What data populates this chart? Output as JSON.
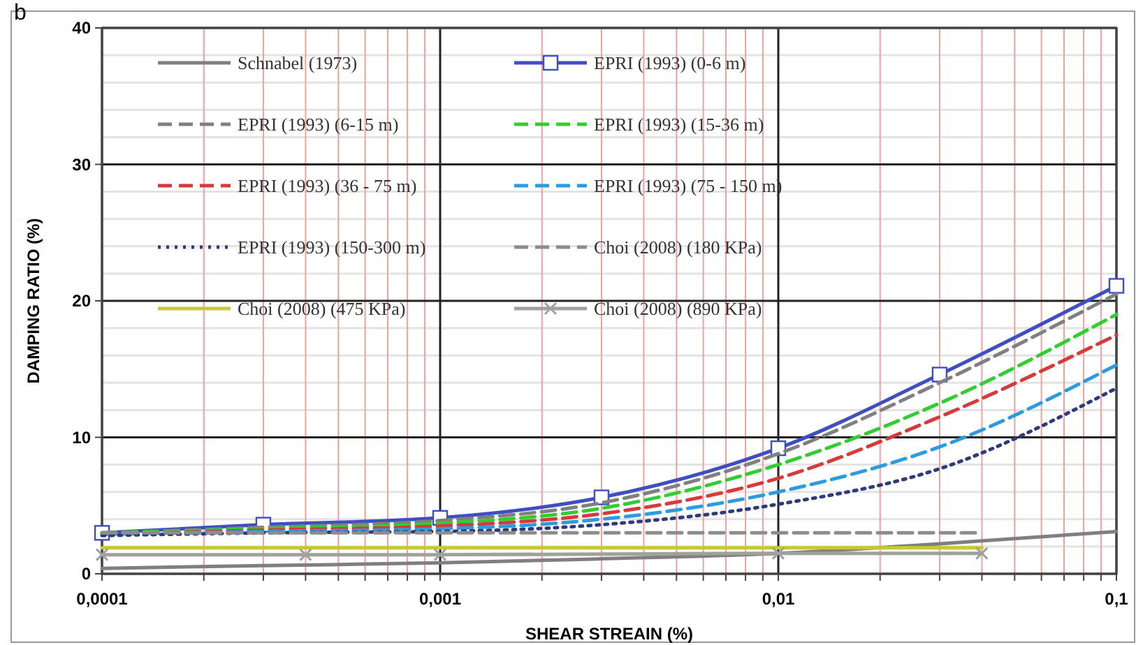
{
  "chart_data": {
    "type": "line",
    "xlabel": "SHEAR STREAIN (%)",
    "ylabel": "DAMPING RATIO (%)",
    "annotations": [
      "b"
    ],
    "log": "x",
    "grid": true,
    "legend": "top",
    "xlim": [
      0.0001,
      0.1
    ],
    "xticks": [
      {
        "value": 0.0001,
        "label": "0,0001"
      },
      {
        "value": 0.0002,
        "label": null
      },
      {
        "value": 0.0003,
        "label": null
      },
      {
        "value": 0.0004,
        "label": null
      },
      {
        "value": 0.0005,
        "label": null
      },
      {
        "value": 0.0006,
        "label": null
      },
      {
        "value": 0.0007,
        "label": null
      },
      {
        "value": 0.0008,
        "label": null
      },
      {
        "value": 0.0009,
        "label": null
      },
      {
        "value": 0.001,
        "label": "0,001"
      },
      {
        "value": 0.002,
        "label": null
      },
      {
        "value": 0.003,
        "label": null
      },
      {
        "value": 0.004,
        "label": null
      },
      {
        "value": 0.005,
        "label": null
      },
      {
        "value": 0.006,
        "label": null
      },
      {
        "value": 0.007,
        "label": null
      },
      {
        "value": 0.008,
        "label": null
      },
      {
        "value": 0.009,
        "label": null
      },
      {
        "value": 0.01,
        "label": "0,01"
      },
      {
        "value": 0.02,
        "label": null
      },
      {
        "value": 0.03,
        "label": null
      },
      {
        "value": 0.04,
        "label": null
      },
      {
        "value": 0.05,
        "label": null
      },
      {
        "value": 0.06,
        "label": null
      },
      {
        "value": 0.07,
        "label": null
      },
      {
        "value": 0.08,
        "label": null
      },
      {
        "value": 0.09,
        "label": null
      },
      {
        "value": 0.1,
        "label": "0,1"
      }
    ],
    "ylim": [
      0,
      40
    ],
    "yticks": [
      0,
      10,
      20,
      30,
      40
    ],
    "x": [
      0.0001,
      0.0003,
      0.001,
      0.003,
      0.01,
      0.03,
      0.1
    ],
    "series": [
      {
        "name": "Schnabel (1973)",
        "color": "#7f7f7f",
        "line_style": "solid",
        "marker": "none",
        "values": [
          0.4,
          0.6,
          0.8,
          1.1,
          1.5,
          2.2,
          3.1
        ]
      },
      {
        "name": "EPRI (1993) (0-6 m)",
        "color": "#3f4fbf",
        "line_style": "solid",
        "marker": "square",
        "values": [
          3.0,
          3.6,
          4.1,
          5.6,
          9.2,
          14.6,
          21.1
        ]
      },
      {
        "name": "EPRI (1993) (6-15 m)",
        "color": "#808080",
        "line_style": "dashed",
        "marker": "none",
        "values": [
          3.0,
          3.4,
          3.9,
          5.2,
          8.8,
          14.0,
          20.5
        ]
      },
      {
        "name": "EPRI (1993) (15-36 m)",
        "color": "#33cc33",
        "line_style": "dashed",
        "marker": "none",
        "values": [
          3.0,
          3.3,
          3.7,
          4.8,
          8.0,
          12.5,
          19.0
        ]
      },
      {
        "name": "EPRI (1993) (36 - 75 m)",
        "color": "#d63b3b",
        "line_style": "dashed",
        "marker": "none",
        "values": [
          2.9,
          3.2,
          3.5,
          4.4,
          7.0,
          11.5,
          17.5
        ]
      },
      {
        "name": "EPRI (1993) (75 - 150 m)",
        "color": "#2e9be0",
        "line_style": "dashed",
        "marker": "none",
        "values": [
          2.9,
          3.1,
          3.3,
          4.0,
          6.0,
          9.3,
          15.3
        ]
      },
      {
        "name": "EPRI (1993) (150-300 m)",
        "color": "#2e3a7a",
        "line_style": "dotted",
        "marker": "none",
        "values": [
          2.8,
          3.0,
          3.1,
          3.6,
          5.1,
          7.7,
          13.6
        ]
      },
      {
        "name": "Choi (2008) (180 KPa)",
        "color": "#8c8c8c",
        "line_style": "dashed",
        "marker": "none",
        "x": [
          0.0001,
          0.001,
          0.01,
          0.04
        ],
        "values": [
          3.0,
          3.0,
          3.0,
          3.0
        ]
      },
      {
        "name": "Choi (2008) (475 KPa)",
        "color": "#c8c832",
        "line_style": "solid",
        "marker": "none",
        "x": [
          0.0001,
          0.001,
          0.01,
          0.04
        ],
        "values": [
          1.9,
          1.9,
          1.9,
          1.9
        ]
      },
      {
        "name": "Choi (2008) (890 KPa)",
        "color": "#a0a0a0",
        "line_style": "solid",
        "marker": "cross",
        "x": [
          0.0001,
          0.0004,
          0.001,
          0.01,
          0.04
        ],
        "values": [
          1.4,
          1.4,
          1.4,
          1.5,
          1.5
        ]
      }
    ]
  }
}
